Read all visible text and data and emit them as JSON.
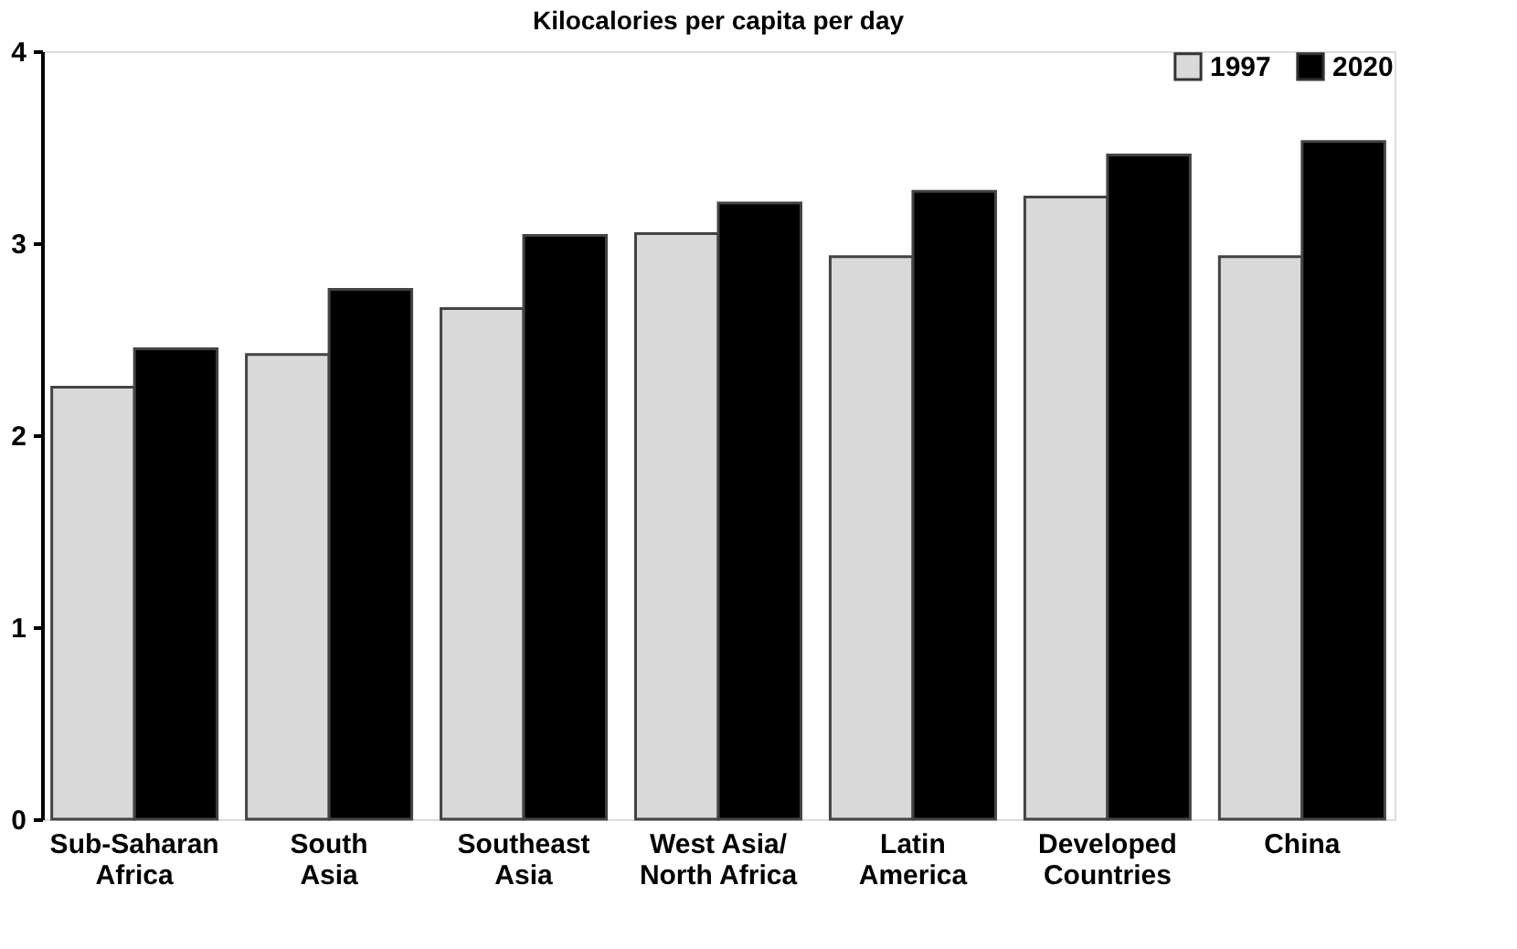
{
  "chart_data": {
    "type": "bar",
    "title": "Kilocalories per capita per day",
    "categories": [
      "Sub-Saharan\nAfrica",
      "South\nAsia",
      "Southeast\nAsia",
      "West Asia/\nNorth Africa",
      "Latin\nAmerica",
      "Developed\nCountries",
      "China"
    ],
    "series": [
      {
        "name": "1997",
        "color": "#d9d9d9",
        "values": [
          2.25,
          2.42,
          2.66,
          3.05,
          2.93,
          3.24,
          2.93
        ]
      },
      {
        "name": "2020",
        "color": "#000000",
        "values": [
          2.45,
          2.76,
          3.04,
          3.21,
          3.27,
          3.46,
          3.53
        ]
      }
    ],
    "ylim": [
      0,
      4
    ],
    "yticks": [
      0,
      1,
      2,
      3,
      4
    ],
    "grid": false,
    "legend": "top right"
  }
}
